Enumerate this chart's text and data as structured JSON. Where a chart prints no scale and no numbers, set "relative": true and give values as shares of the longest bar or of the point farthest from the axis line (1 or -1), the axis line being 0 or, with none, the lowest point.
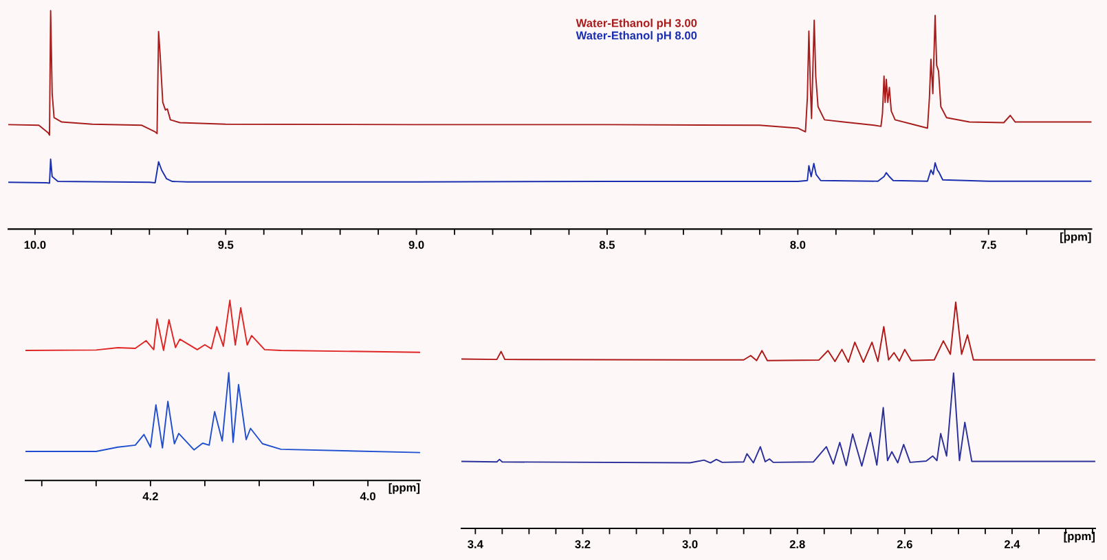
{
  "chart_data": [
    {
      "type": "line",
      "relative": true,
      "xlabel": "[ppm]",
      "xlim": [
        10.07,
        7.23
      ],
      "legend": "top",
      "xticks": [
        {
          "value": 10.0,
          "label": "10.0"
        },
        {
          "value": 9.9,
          "label": null
        },
        {
          "value": 9.8,
          "label": null
        },
        {
          "value": 9.7,
          "label": null
        },
        {
          "value": 9.6,
          "label": null
        },
        {
          "value": 9.5,
          "label": "9.5"
        },
        {
          "value": 9.4,
          "label": null
        },
        {
          "value": 9.3,
          "label": null
        },
        {
          "value": 9.2,
          "label": null
        },
        {
          "value": 9.1,
          "label": null
        },
        {
          "value": 9.0,
          "label": "9.0"
        },
        {
          "value": 8.9,
          "label": null
        },
        {
          "value": 8.8,
          "label": null
        },
        {
          "value": 8.7,
          "label": null
        },
        {
          "value": 8.6,
          "label": null
        },
        {
          "value": 8.5,
          "label": "8.5"
        },
        {
          "value": 8.4,
          "label": null
        },
        {
          "value": 8.3,
          "label": null
        },
        {
          "value": 8.2,
          "label": null
        },
        {
          "value": 8.1,
          "label": null
        },
        {
          "value": 8.0,
          "label": "8.0"
        },
        {
          "value": 7.9,
          "label": null
        },
        {
          "value": 7.8,
          "label": null
        },
        {
          "value": 7.7,
          "label": null
        },
        {
          "value": 7.6,
          "label": null
        },
        {
          "value": 7.5,
          "label": "7.5"
        },
        {
          "value": 7.4,
          "label": null
        },
        {
          "value": 7.3,
          "label": null
        }
      ],
      "series": [
        {
          "name": "Water-Ethanol pH 3.00",
          "color": "#a81c1c",
          "x": [
            10.07,
            9.99,
            9.965,
            9.962,
            9.959,
            9.955,
            9.95,
            9.93,
            9.85,
            9.72,
            9.685,
            9.68,
            9.676,
            9.672,
            9.665,
            9.658,
            9.653,
            9.645,
            9.62,
            9.5,
            9.0,
            8.5,
            8.1,
            8.0,
            7.98,
            7.975,
            7.971,
            7.967,
            7.964,
            7.961,
            7.957,
            7.953,
            7.947,
            7.93,
            7.88,
            7.8,
            7.782,
            7.778,
            7.774,
            7.771,
            7.768,
            7.764,
            7.76,
            7.755,
            7.745,
            7.7,
            7.66,
            7.655,
            7.651,
            7.646,
            7.64,
            7.636,
            7.631,
            7.625,
            7.61,
            7.55,
            7.46,
            7.443,
            7.43,
            7.3,
            7.23
          ],
          "values": [
            0.478,
            0.475,
            0.44,
            0.43,
            1.0,
            0.62,
            0.51,
            0.49,
            0.48,
            0.475,
            0.445,
            0.437,
            0.904,
            0.8,
            0.58,
            0.545,
            0.55,
            0.5,
            0.487,
            0.48,
            0.478,
            0.478,
            0.475,
            0.462,
            0.445,
            0.6,
            0.906,
            0.65,
            0.506,
            0.7,
            0.956,
            0.7,
            0.56,
            0.5,
            0.49,
            0.475,
            0.47,
            0.53,
            0.7,
            0.58,
            0.685,
            0.58,
            0.648,
            0.54,
            0.5,
            0.48,
            0.462,
            0.6,
            0.777,
            0.62,
            0.978,
            0.75,
            0.723,
            0.56,
            0.51,
            0.49,
            0.487,
            0.52,
            0.49,
            0.49,
            0.49
          ]
        },
        {
          "name": "Water-Ethanol pH 8.00",
          "color": "#1a2fb0",
          "x": [
            10.07,
            9.97,
            9.962,
            9.959,
            9.955,
            9.94,
            9.7,
            9.685,
            9.676,
            9.668,
            9.655,
            9.64,
            9.6,
            9.0,
            8.5,
            8.0,
            7.975,
            7.971,
            7.965,
            7.958,
            7.952,
            7.94,
            7.79,
            7.774,
            7.768,
            7.76,
            7.75,
            7.66,
            7.651,
            7.645,
            7.64,
            7.634,
            7.63,
            7.62,
            7.5,
            7.23
          ],
          "values": [
            0.214,
            0.212,
            0.21,
            0.32,
            0.24,
            0.218,
            0.214,
            0.212,
            0.308,
            0.27,
            0.23,
            0.218,
            0.216,
            0.216,
            0.218,
            0.218,
            0.222,
            0.29,
            0.24,
            0.3,
            0.25,
            0.222,
            0.219,
            0.24,
            0.258,
            0.24,
            0.222,
            0.219,
            0.27,
            0.25,
            0.303,
            0.27,
            0.26,
            0.225,
            0.219,
            0.219
          ]
        }
      ]
    },
    {
      "type": "line",
      "relative": true,
      "xlabel": "[ppm]",
      "xlim": [
        4.315,
        3.952
      ],
      "xticks": [
        {
          "value": 4.3,
          "label": null
        },
        {
          "value": 4.25,
          "label": null
        },
        {
          "value": 4.2,
          "label": "4.2"
        },
        {
          "value": 4.15,
          "label": null
        },
        {
          "value": 4.1,
          "label": null
        },
        {
          "value": 4.05,
          "label": null
        },
        {
          "value": 4.0,
          "label": "4.0"
        }
      ],
      "series": [
        {
          "color": "#e02424",
          "x": [
            4.315,
            4.25,
            4.23,
            4.214,
            4.204,
            4.197,
            4.194,
            4.188,
            4.183,
            4.177,
            4.173,
            4.157,
            4.15,
            4.144,
            4.139,
            4.133,
            4.127,
            4.122,
            4.117,
            4.111,
            4.107,
            4.095,
            4.08,
            3.952
          ],
          "values": [
            0.722,
            0.724,
            0.737,
            0.733,
            0.776,
            0.726,
            0.896,
            0.722,
            0.892,
            0.738,
            0.784,
            0.726,
            0.753,
            0.731,
            0.853,
            0.745,
            1.0,
            0.752,
            0.958,
            0.752,
            0.804,
            0.726,
            0.722,
            0.711
          ]
        },
        {
          "color": "#1f4fd0",
          "x": [
            4.315,
            4.25,
            4.23,
            4.214,
            4.206,
            4.2,
            4.195,
            4.189,
            4.184,
            4.178,
            4.174,
            4.16,
            4.152,
            4.146,
            4.141,
            4.134,
            4.128,
            4.124,
            4.119,
            4.112,
            4.108,
            4.097,
            4.08,
            3.952
          ],
          "values": [
            0.161,
            0.161,
            0.185,
            0.196,
            0.255,
            0.185,
            0.42,
            0.181,
            0.439,
            0.204,
            0.261,
            0.17,
            0.207,
            0.196,
            0.382,
            0.219,
            0.598,
            0.212,
            0.532,
            0.227,
            0.289,
            0.204,
            0.173,
            0.155
          ]
        }
      ]
    },
    {
      "type": "line",
      "relative": true,
      "xlabel": "[ppm]",
      "xlim": [
        3.426,
        2.245
      ],
      "xticks": [
        {
          "value": 3.4,
          "label": "3.4"
        },
        {
          "value": 3.35,
          "label": null
        },
        {
          "value": 3.3,
          "label": null
        },
        {
          "value": 3.25,
          "label": null
        },
        {
          "value": 3.2,
          "label": "3.2"
        },
        {
          "value": 3.15,
          "label": null
        },
        {
          "value": 3.1,
          "label": null
        },
        {
          "value": 3.05,
          "label": null
        },
        {
          "value": 3.0,
          "label": "3.0"
        },
        {
          "value": 2.95,
          "label": null
        },
        {
          "value": 2.9,
          "label": null
        },
        {
          "value": 2.85,
          "label": null
        },
        {
          "value": 2.8,
          "label": "2.8"
        },
        {
          "value": 2.75,
          "label": null
        },
        {
          "value": 2.7,
          "label": null
        },
        {
          "value": 2.65,
          "label": null
        },
        {
          "value": 2.6,
          "label": "2.6"
        },
        {
          "value": 2.55,
          "label": null
        },
        {
          "value": 2.5,
          "label": null
        },
        {
          "value": 2.45,
          "label": null
        },
        {
          "value": 2.4,
          "label": "2.4"
        },
        {
          "value": 2.35,
          "label": null
        },
        {
          "value": 2.3,
          "label": null
        },
        {
          "value": 2.25,
          "label": null
        }
      ],
      "series": [
        {
          "color": "#b01818",
          "x": [
            3.426,
            3.36,
            3.352,
            3.345,
            3.0,
            2.9,
            2.887,
            2.876,
            2.866,
            2.856,
            2.76,
            2.743,
            2.73,
            2.717,
            2.705,
            2.693,
            2.677,
            2.661,
            2.65,
            2.639,
            2.63,
            2.62,
            2.61,
            2.6,
            2.588,
            2.545,
            2.528,
            2.515,
            2.505,
            2.494,
            2.483,
            2.472,
            2.245
          ],
          "values": [
            0.749,
            0.747,
            0.782,
            0.747,
            0.745,
            0.745,
            0.764,
            0.742,
            0.786,
            0.742,
            0.744,
            0.786,
            0.738,
            0.791,
            0.735,
            0.823,
            0.735,
            0.823,
            0.738,
            0.892,
            0.745,
            0.777,
            0.74,
            0.791,
            0.742,
            0.745,
            0.829,
            0.77,
            1.0,
            0.77,
            0.855,
            0.745,
            0.745
          ]
        },
        {
          "color": "#2a2f9a",
          "x": [
            3.426,
            3.36,
            3.355,
            3.35,
            3.0,
            2.974,
            2.962,
            2.951,
            2.94,
            2.9,
            2.894,
            2.882,
            2.869,
            2.86,
            2.852,
            2.845,
            2.77,
            2.746,
            2.733,
            2.721,
            2.709,
            2.697,
            2.68,
            2.664,
            2.652,
            2.64,
            2.632,
            2.624,
            2.613,
            2.602,
            2.59,
            2.56,
            2.548,
            2.54,
            2.533,
            2.522,
            2.509,
            2.498,
            2.488,
            2.475,
            2.245
          ],
          "values": [
            0.296,
            0.294,
            0.305,
            0.294,
            0.29,
            0.302,
            0.29,
            0.305,
            0.292,
            0.294,
            0.33,
            0.29,
            0.361,
            0.295,
            0.307,
            0.292,
            0.294,
            0.361,
            0.285,
            0.38,
            0.278,
            0.417,
            0.276,
            0.423,
            0.28,
            0.534,
            0.3,
            0.339,
            0.29,
            0.371,
            0.292,
            0.298,
            0.32,
            0.3,
            0.419,
            0.32,
            0.687,
            0.3,
            0.469,
            0.296,
            0.296
          ]
        }
      ]
    }
  ]
}
